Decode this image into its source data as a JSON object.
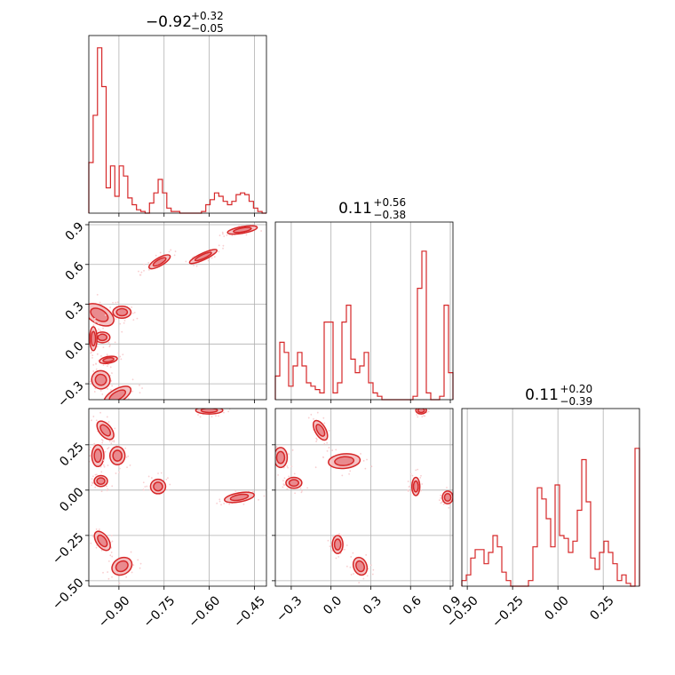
{
  "chart_data": {
    "type": "corner",
    "color": "#d62728",
    "titles": [
      {
        "median": "−0.92",
        "plus": "+0.32",
        "minus": "−0.05"
      },
      {
        "median": "0.11",
        "plus": "+0.56",
        "minus": "−0.38"
      },
      {
        "median": "0.11",
        "plus": "+0.20",
        "minus": "−0.39"
      }
    ],
    "ranges": [
      [
        -1.0,
        -0.41
      ],
      [
        -0.42,
        0.92
      ],
      [
        -0.53,
        0.45
      ]
    ],
    "ticks": [
      {
        "values": [
          -0.9,
          -0.75,
          -0.6,
          -0.45
        ],
        "labels": [
          "−0.90",
          "−0.75",
          "−0.60",
          "−0.45"
        ]
      },
      {
        "values": [
          -0.3,
          0.0,
          0.3,
          0.6,
          0.9
        ],
        "labels": [
          "−0.3",
          "0.0",
          "0.3",
          "0.6",
          "0.9"
        ]
      },
      {
        "values": [
          -0.5,
          -0.25,
          0.0,
          0.25
        ],
        "labels": [
          "−0.50",
          "−0.25",
          "0.00",
          "0.25"
        ]
      }
    ],
    "histograms": [
      [
        0.3,
        0.58,
        0.98,
        0.75,
        0.15,
        0.28,
        0.1,
        0.28,
        0.22,
        0.09,
        0.05,
        0.02,
        0.01,
        0.0,
        0.06,
        0.12,
        0.2,
        0.12,
        0.03,
        0.01,
        0.01,
        0.0,
        0.0,
        0.0,
        0.0,
        0.0,
        0.01,
        0.05,
        0.08,
        0.12,
        0.1,
        0.07,
        0.05,
        0.07,
        0.11,
        0.12,
        0.11,
        0.07,
        0.03,
        0.01,
        0.0
      ],
      [
        0.07,
        0.17,
        0.14,
        0.04,
        0.1,
        0.14,
        0.1,
        0.05,
        0.04,
        0.03,
        0.02,
        0.23,
        0.23,
        0.02,
        0.05,
        0.23,
        0.28,
        0.12,
        0.08,
        0.1,
        0.14,
        0.05,
        0.02,
        0.01,
        0.0,
        0.0,
        0.0,
        0.0,
        0.0,
        0.0,
        0.0,
        0.01,
        0.33,
        0.44,
        0.02,
        0.0,
        0.0,
        0.01,
        0.28,
        0.08
      ],
      [
        0.02,
        0.04,
        0.1,
        0.13,
        0.13,
        0.08,
        0.12,
        0.18,
        0.14,
        0.05,
        0.02,
        0.0,
        0.0,
        0.0,
        0.0,
        0.02,
        0.14,
        0.35,
        0.31,
        0.24,
        0.14,
        0.36,
        0.18,
        0.17,
        0.12,
        0.16,
        0.27,
        0.45,
        0.3,
        0.1,
        0.06,
        0.12,
        0.16,
        0.12,
        0.08,
        0.02,
        0.04,
        0.01,
        0.0,
        0.49
      ]
    ],
    "histogram_ymax": [
      1.0,
      0.5,
      0.6
    ],
    "clusters_x0_x1": [
      {
        "x": -0.965,
        "y": 0.22,
        "w": 0.03,
        "h": 0.12,
        "a": -60
      },
      {
        "x": -0.955,
        "y": 0.05,
        "w": 0.025,
        "h": 0.04,
        "a": 0
      },
      {
        "x": -0.935,
        "y": -0.12,
        "w": 0.03,
        "h": 0.025,
        "a": -10
      },
      {
        "x": -0.89,
        "y": 0.24,
        "w": 0.03,
        "h": 0.045,
        "a": 0
      },
      {
        "x": -0.96,
        "y": -0.27,
        "w": 0.03,
        "h": 0.07,
        "a": -55
      },
      {
        "x": -0.905,
        "y": -0.39,
        "w": 0.05,
        "h": 0.05,
        "a": -30
      },
      {
        "x": -0.765,
        "y": 0.62,
        "w": 0.04,
        "h": 0.03,
        "a": -30
      },
      {
        "x": -0.62,
        "y": 0.66,
        "w": 0.05,
        "h": 0.025,
        "a": -25
      },
      {
        "x": -0.49,
        "y": 0.86,
        "w": 0.05,
        "h": 0.025,
        "a": -10
      },
      {
        "x": -0.985,
        "y": 0.04,
        "w": 0.012,
        "h": 0.09,
        "a": 0
      }
    ],
    "clusters_x0_x2": [
      {
        "x": -0.97,
        "y": 0.19,
        "w": 0.02,
        "h": 0.06,
        "a": 0
      },
      {
        "x": -0.96,
        "y": 0.05,
        "w": 0.022,
        "h": 0.03,
        "a": 0
      },
      {
        "x": -0.945,
        "y": 0.33,
        "w": 0.02,
        "h": 0.06,
        "a": -40
      },
      {
        "x": -0.905,
        "y": 0.19,
        "w": 0.025,
        "h": 0.05,
        "a": 0
      },
      {
        "x": -0.955,
        "y": -0.28,
        "w": 0.02,
        "h": 0.06,
        "a": -35
      },
      {
        "x": -0.89,
        "y": -0.42,
        "w": 0.035,
        "h": 0.045,
        "a": -30
      },
      {
        "x": -0.77,
        "y": 0.02,
        "w": 0.025,
        "h": 0.04,
        "a": 0
      },
      {
        "x": -0.6,
        "y": 0.44,
        "w": 0.045,
        "h": 0.02,
        "a": 0
      },
      {
        "x": -0.5,
        "y": -0.04,
        "w": 0.05,
        "h": 0.025,
        "a": -10
      }
    ],
    "clusters_x1_x2": [
      {
        "x": -0.38,
        "y": 0.18,
        "w": 0.05,
        "h": 0.055,
        "a": 0
      },
      {
        "x": -0.28,
        "y": 0.04,
        "w": 0.06,
        "h": 0.03,
        "a": 0
      },
      {
        "x": -0.08,
        "y": 0.33,
        "w": 0.04,
        "h": 0.06,
        "a": -30
      },
      {
        "x": 0.1,
        "y": 0.16,
        "w": 0.12,
        "h": 0.04,
        "a": -5
      },
      {
        "x": 0.05,
        "y": -0.3,
        "w": 0.04,
        "h": 0.05,
        "a": 0
      },
      {
        "x": 0.22,
        "y": -0.42,
        "w": 0.05,
        "h": 0.05,
        "a": -20
      },
      {
        "x": 0.64,
        "y": 0.02,
        "w": 0.03,
        "h": 0.05,
        "a": 0
      },
      {
        "x": 0.68,
        "y": 0.44,
        "w": 0.04,
        "h": 0.02,
        "a": 0
      },
      {
        "x": 0.88,
        "y": -0.04,
        "w": 0.04,
        "h": 0.035,
        "a": 0
      }
    ]
  }
}
